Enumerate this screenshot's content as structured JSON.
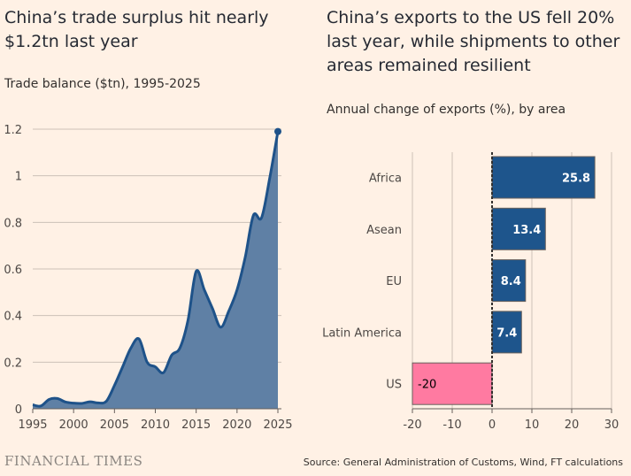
{
  "chart_data": [
    {
      "type": "area",
      "title": "China’s trade surplus hit nearly $1.2tn last year",
      "subtitle": "Trade balance ($tn), 1995-2025",
      "x": [
        1995,
        1996,
        1997,
        1998,
        1999,
        2000,
        2001,
        2002,
        2003,
        2004,
        2005,
        2006,
        2007,
        2008,
        2009,
        2010,
        2011,
        2012,
        2013,
        2014,
        2015,
        2016,
        2017,
        2018,
        2019,
        2020,
        2021,
        2022,
        2023,
        2024,
        2025
      ],
      "values": [
        0.017,
        0.012,
        0.04,
        0.044,
        0.029,
        0.024,
        0.023,
        0.03,
        0.025,
        0.032,
        0.1,
        0.18,
        0.26,
        0.3,
        0.2,
        0.18,
        0.155,
        0.23,
        0.26,
        0.38,
        0.59,
        0.51,
        0.43,
        0.35,
        0.42,
        0.51,
        0.65,
        0.83,
        0.82,
        0.99,
        1.19
      ],
      "ylim": [
        0,
        1.2
      ],
      "yticks": [
        "0",
        "0.2",
        "0.4",
        "0.6",
        "0.8",
        "1",
        "1.2"
      ],
      "yticks_values": [
        0,
        0.2,
        0.4,
        0.6,
        0.8,
        1,
        1.2
      ],
      "xticks": [
        "1995",
        "2000",
        "2005",
        "2010",
        "2015",
        "2020",
        "2025"
      ],
      "xticks_values": [
        1995,
        2000,
        2005,
        2010,
        2015,
        2020,
        2025
      ],
      "grid": true,
      "color": "#1e5289",
      "fill": "#5f80a5"
    },
    {
      "type": "bar",
      "orientation": "horizontal",
      "title": "China’s exports to the US fell 20% last year, while shipments to other areas remained resilient",
      "subtitle": "Annual change of exports (%), by area",
      "categories": [
        "Africa",
        "Asean",
        "EU",
        "Latin America",
        "US"
      ],
      "values": [
        25.8,
        13.4,
        8.4,
        7.4,
        -20
      ],
      "labels": [
        "25.8",
        "13.4",
        "8.4",
        "7.4",
        "-20"
      ],
      "xlim": [
        -20,
        30
      ],
      "xticks": [
        "-20",
        "-10",
        "0",
        "10",
        "20",
        "30"
      ],
      "xticks_values": [
        -20,
        -10,
        0,
        10,
        20,
        30
      ],
      "grid": true,
      "positive_color": "#1e558c",
      "negative_color": "#ff7aa1"
    }
  ],
  "footer": {
    "brand": "FINANCIAL TIMES",
    "source": "Source: General Administration of Customs, Wind, FT calculations"
  }
}
